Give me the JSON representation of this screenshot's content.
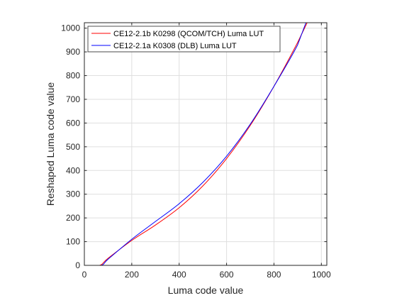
{
  "chart_data": {
    "type": "line",
    "xlabel": "Luma code value",
    "ylabel": "Reshaped Luma code value",
    "xlim": [
      0,
      1023
    ],
    "ylim": [
      0,
      1023
    ],
    "xticks": [
      0,
      200,
      400,
      600,
      800,
      1000
    ],
    "yticks": [
      0,
      100,
      200,
      300,
      400,
      500,
      600,
      700,
      800,
      900,
      1000
    ],
    "grid": true,
    "legend_position": "top-left",
    "series": [
      {
        "name": "CE12-2.1b K0298 (QCOM/TCH) Luma LUT",
        "color": "#ff0000",
        "x": [
          0,
          64,
          100,
          200,
          300,
          400,
          500,
          600,
          700,
          800,
          900,
          940,
          1023
        ],
        "y": [
          0,
          0,
          30,
          105,
          170,
          243,
          335,
          450,
          590,
          755,
          940,
          1023,
          1023
        ]
      },
      {
        "name": "CE12-2.1a K0308 (DLB) Luma LUT",
        "color": "#0000ff",
        "x": [
          0,
          70,
          100,
          200,
          300,
          400,
          500,
          600,
          700,
          800,
          900,
          935,
          1023
        ],
        "y": [
          0,
          0,
          26,
          110,
          185,
          260,
          350,
          460,
          595,
          755,
          930,
          1023,
          1023
        ]
      }
    ]
  }
}
